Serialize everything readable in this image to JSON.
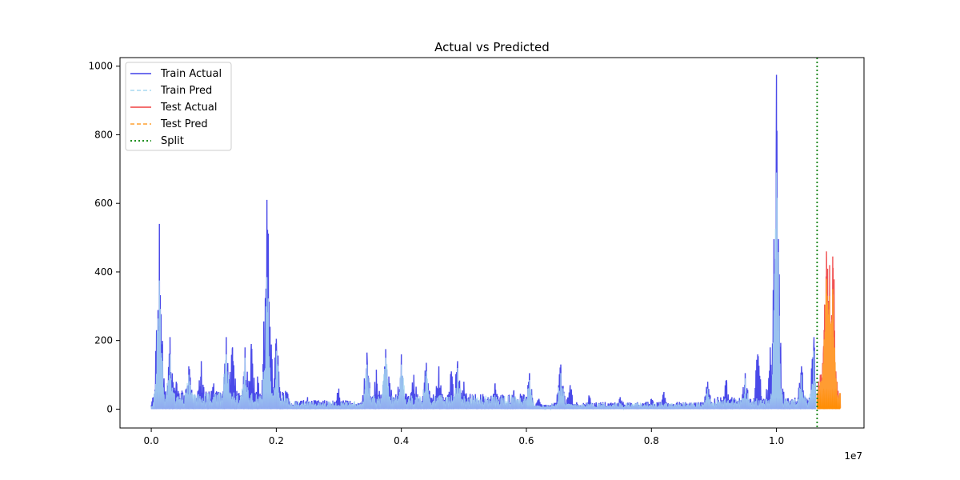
{
  "chart_data": {
    "type": "line",
    "title": "Actual vs Predicted",
    "xlabel": "",
    "ylabel": "",
    "x_multiplier_label": "1e7",
    "xlim": [
      -0.05,
      1.14
    ],
    "ylim": [
      -55,
      1025
    ],
    "x_ticks": [
      0.0,
      0.2,
      0.4,
      0.6,
      0.8,
      1.0
    ],
    "x_tick_labels": [
      "0.0",
      "0.2",
      "0.4",
      "0.6",
      "0.8",
      "1.0"
    ],
    "y_ticks": [
      0,
      200,
      400,
      600,
      800,
      1000
    ],
    "y_tick_labels": [
      "0",
      "200",
      "400",
      "600",
      "800",
      "1000"
    ],
    "grid": false,
    "legend_position": "top-left",
    "split_x": 1.065,
    "series": [
      {
        "name": "Train Actual",
        "color": "#4040e8",
        "style": "solid",
        "peaks": [
          [
            0.0,
            10
          ],
          [
            0.005,
            45
          ],
          [
            0.01,
            70
          ],
          [
            0.013,
            540
          ],
          [
            0.017,
            160
          ],
          [
            0.02,
            60
          ],
          [
            0.03,
            210
          ],
          [
            0.04,
            80
          ],
          [
            0.06,
            125
          ],
          [
            0.08,
            140
          ],
          [
            0.1,
            75
          ],
          [
            0.12,
            210
          ],
          [
            0.13,
            180
          ],
          [
            0.15,
            180
          ],
          [
            0.16,
            190
          ],
          [
            0.17,
            95
          ],
          [
            0.185,
            610
          ],
          [
            0.19,
            240
          ],
          [
            0.2,
            205
          ],
          [
            0.21,
            50
          ],
          [
            0.25,
            35
          ],
          [
            0.3,
            60
          ],
          [
            0.345,
            165
          ],
          [
            0.36,
            115
          ],
          [
            0.375,
            175
          ],
          [
            0.38,
            95
          ],
          [
            0.4,
            160
          ],
          [
            0.42,
            100
          ],
          [
            0.44,
            135
          ],
          [
            0.46,
            125
          ],
          [
            0.48,
            110
          ],
          [
            0.49,
            140
          ],
          [
            0.5,
            80
          ],
          [
            0.55,
            75
          ],
          [
            0.58,
            55
          ],
          [
            0.605,
            105
          ],
          [
            0.62,
            30
          ],
          [
            0.655,
            130
          ],
          [
            0.67,
            70
          ],
          [
            0.7,
            40
          ],
          [
            0.75,
            35
          ],
          [
            0.8,
            30
          ],
          [
            0.82,
            50
          ],
          [
            0.85,
            15
          ],
          [
            0.89,
            80
          ],
          [
            0.92,
            85
          ],
          [
            0.95,
            105
          ],
          [
            0.97,
            160
          ],
          [
            0.99,
            180
          ],
          [
            1.0,
            975
          ],
          [
            1.01,
            60
          ],
          [
            1.04,
            125
          ],
          [
            1.06,
            210
          ]
        ]
      },
      {
        "name": "Train Pred",
        "color": "#a8d8f0",
        "style": "dashed",
        "peaks": [
          [
            0.0,
            8
          ],
          [
            0.01,
            60
          ],
          [
            0.013,
            375
          ],
          [
            0.03,
            160
          ],
          [
            0.06,
            100
          ],
          [
            0.12,
            160
          ],
          [
            0.15,
            150
          ],
          [
            0.185,
            385
          ],
          [
            0.2,
            170
          ],
          [
            0.345,
            130
          ],
          [
            0.375,
            150
          ],
          [
            0.4,
            130
          ],
          [
            0.44,
            110
          ],
          [
            0.49,
            120
          ],
          [
            0.605,
            85
          ],
          [
            0.655,
            105
          ],
          [
            0.89,
            60
          ],
          [
            0.95,
            90
          ],
          [
            1.0,
            690
          ],
          [
            1.04,
            100
          ],
          [
            1.06,
            170
          ]
        ]
      },
      {
        "name": "Test Actual",
        "color": "#f04040",
        "style": "solid",
        "peaks": [
          [
            1.065,
            40
          ],
          [
            1.07,
            100
          ],
          [
            1.075,
            160
          ],
          [
            1.08,
            460
          ],
          [
            1.085,
            420
          ],
          [
            1.09,
            445
          ],
          [
            1.095,
            110
          ],
          [
            1.1,
            40
          ]
        ]
      },
      {
        "name": "Test Pred",
        "color": "#ffa030",
        "style": "dashed",
        "peaks": [
          [
            1.065,
            30
          ],
          [
            1.07,
            80
          ],
          [
            1.075,
            120
          ],
          [
            1.08,
            380
          ],
          [
            1.085,
            330
          ],
          [
            1.09,
            350
          ],
          [
            1.095,
            90
          ],
          [
            1.1,
            30
          ]
        ]
      },
      {
        "name": "Split",
        "color": "#008000",
        "style": "dotted"
      }
    ]
  }
}
